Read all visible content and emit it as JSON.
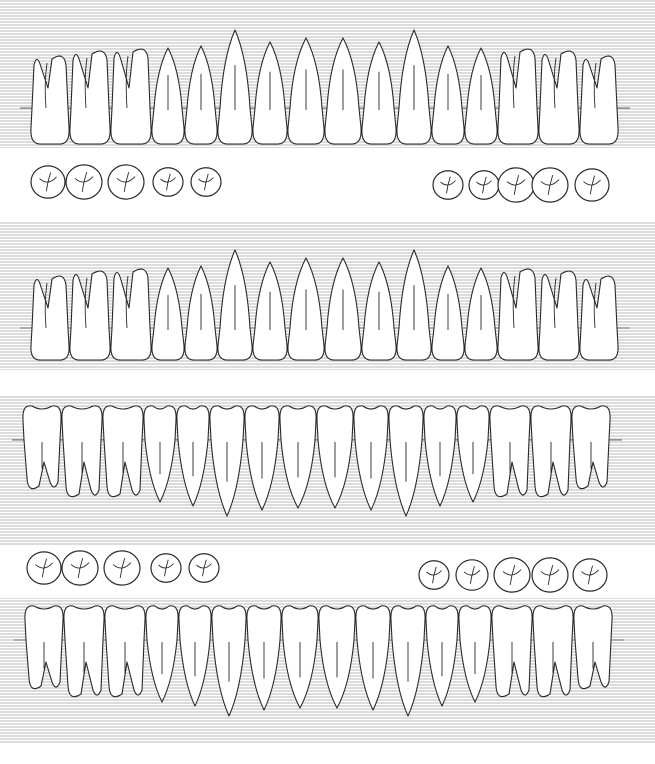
{
  "chart": {
    "band_color": "#c4c4c4",
    "ink_color": "#2a2a2a",
    "paper_color": "#ffffff",
    "rows": [
      {
        "name": "upper-arch-row-1",
        "arch": "upper",
        "teeth": 16
      },
      {
        "name": "upper-arch-row-2",
        "arch": "upper",
        "teeth": 16
      },
      {
        "name": "lower-arch-row-1",
        "arch": "lower",
        "teeth": 16
      },
      {
        "name": "lower-arch-row-2",
        "arch": "lower",
        "teeth": 16
      }
    ],
    "occlusal_groups": [
      {
        "name": "occlusal-upper-right",
        "count": 5
      },
      {
        "name": "occlusal-upper-left",
        "count": 5
      },
      {
        "name": "occlusal-lower-right",
        "count": 5
      },
      {
        "name": "occlusal-lower-left",
        "count": 5
      }
    ]
  }
}
